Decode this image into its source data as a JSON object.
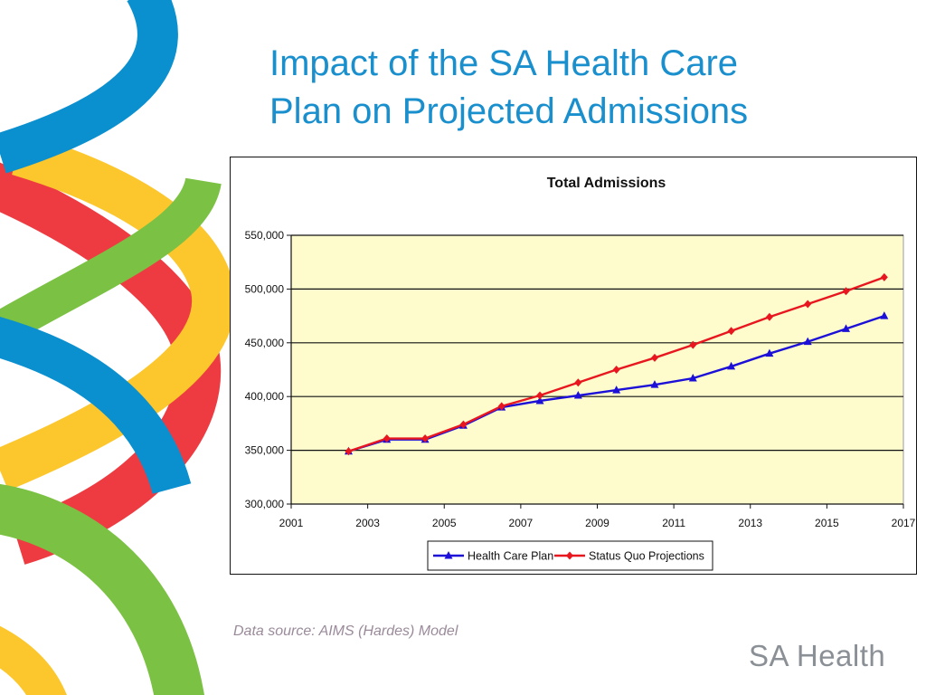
{
  "slide": {
    "title_line1": "Impact of the SA Health Care",
    "title_line2": "Plan on Projected Admissions",
    "source_note": "Data source: AIMS (Hardes) Model",
    "brand": "SA Health"
  },
  "chart_data": {
    "type": "line",
    "title": "Total Admissions",
    "xlabel": "",
    "ylabel": "",
    "xlim": [
      2001,
      2017
    ],
    "ylim": [
      300000,
      550000
    ],
    "x_ticks": [
      2001,
      2003,
      2005,
      2007,
      2009,
      2011,
      2013,
      2015,
      2017
    ],
    "x_tick_labels": [
      "2001",
      "2003",
      "2005",
      "2007",
      "2009",
      "2011",
      "2013",
      "2015",
      "2017"
    ],
    "y_ticks": [
      300000,
      350000,
      400000,
      450000,
      500000,
      550000
    ],
    "y_tick_labels": [
      "300,000",
      "350,000",
      "400,000",
      "450,000",
      "500,000",
      "550,000"
    ],
    "x": [
      2002.5,
      2003.5,
      2004.5,
      2005.5,
      2006.5,
      2007.5,
      2008.5,
      2009.5,
      2010.5,
      2011.5,
      2012.5,
      2013.5,
      2014.5,
      2015.5,
      2016.5
    ],
    "series": [
      {
        "name": "Health Care Plan",
        "color": "#1c10d8",
        "marker": "triangle",
        "values": [
          349000,
          360000,
          360000,
          373000,
          390000,
          396000,
          401000,
          406000,
          411000,
          417000,
          428000,
          440000,
          451000,
          463000,
          475000
        ]
      },
      {
        "name": "Status Quo Projections",
        "color": "#e8171f",
        "marker": "diamond",
        "values": [
          349000,
          361000,
          361000,
          374000,
          391000,
          401000,
          413000,
          425000,
          436000,
          448000,
          461000,
          474000,
          486000,
          498000,
          511000
        ]
      }
    ],
    "plot_background": "#fefccc",
    "grid": true,
    "legend_position": "bottom"
  },
  "colors": {
    "title": "#1a8fcd",
    "ribbon_blue": "#0a8fcf",
    "ribbon_red": "#ee3b42",
    "ribbon_yellow": "#fcc62d",
    "ribbon_green": "#7bc143"
  }
}
